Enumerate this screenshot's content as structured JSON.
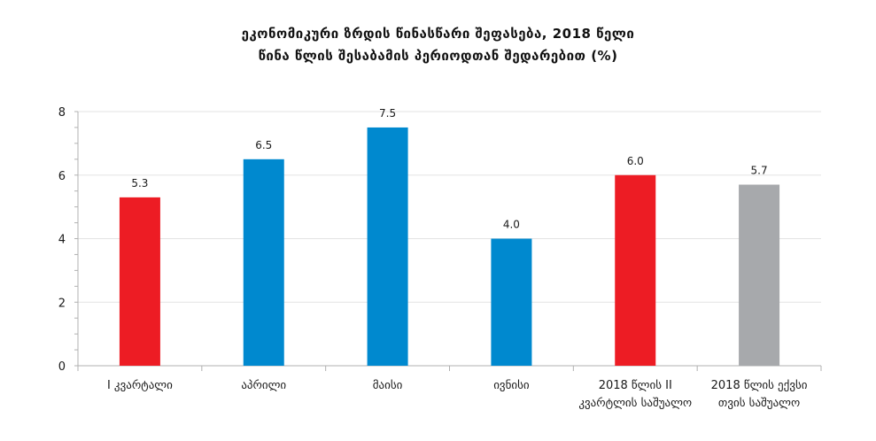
{
  "chart_data": {
    "type": "bar",
    "title": "ეკონომიკური ზრდის წინასწარი შეფასება, 2018 წელი",
    "subtitle": "წინა წლის შესაბამის პერიოდთან შედარებით (%)",
    "categories": [
      [
        "I კვარტალი"
      ],
      [
        "აპრილი"
      ],
      [
        "მაისი"
      ],
      [
        "ივნისი"
      ],
      [
        "2018 წლის II",
        "კვარტლის საშუალო"
      ],
      [
        "2018 წლის ექვსი",
        "თვის საშუალო"
      ]
    ],
    "values": [
      5.3,
      6.5,
      7.5,
      4.0,
      6.0,
      5.7
    ],
    "value_labels": [
      "5.3",
      "6.5",
      "7.5",
      "4.0",
      "6.0",
      "5.7"
    ],
    "bar_colors": [
      "#ed1c24",
      "#0089cf",
      "#0089cf",
      "#0089cf",
      "#ed1c24",
      "#a7a9ac"
    ],
    "ylim": [
      0,
      8
    ],
    "yticks": [
      0,
      2,
      4,
      6,
      8
    ],
    "ytick_labels": [
      "0",
      "2",
      "4",
      "6",
      "8"
    ],
    "grid": true,
    "xlabel": "",
    "ylabel": ""
  }
}
